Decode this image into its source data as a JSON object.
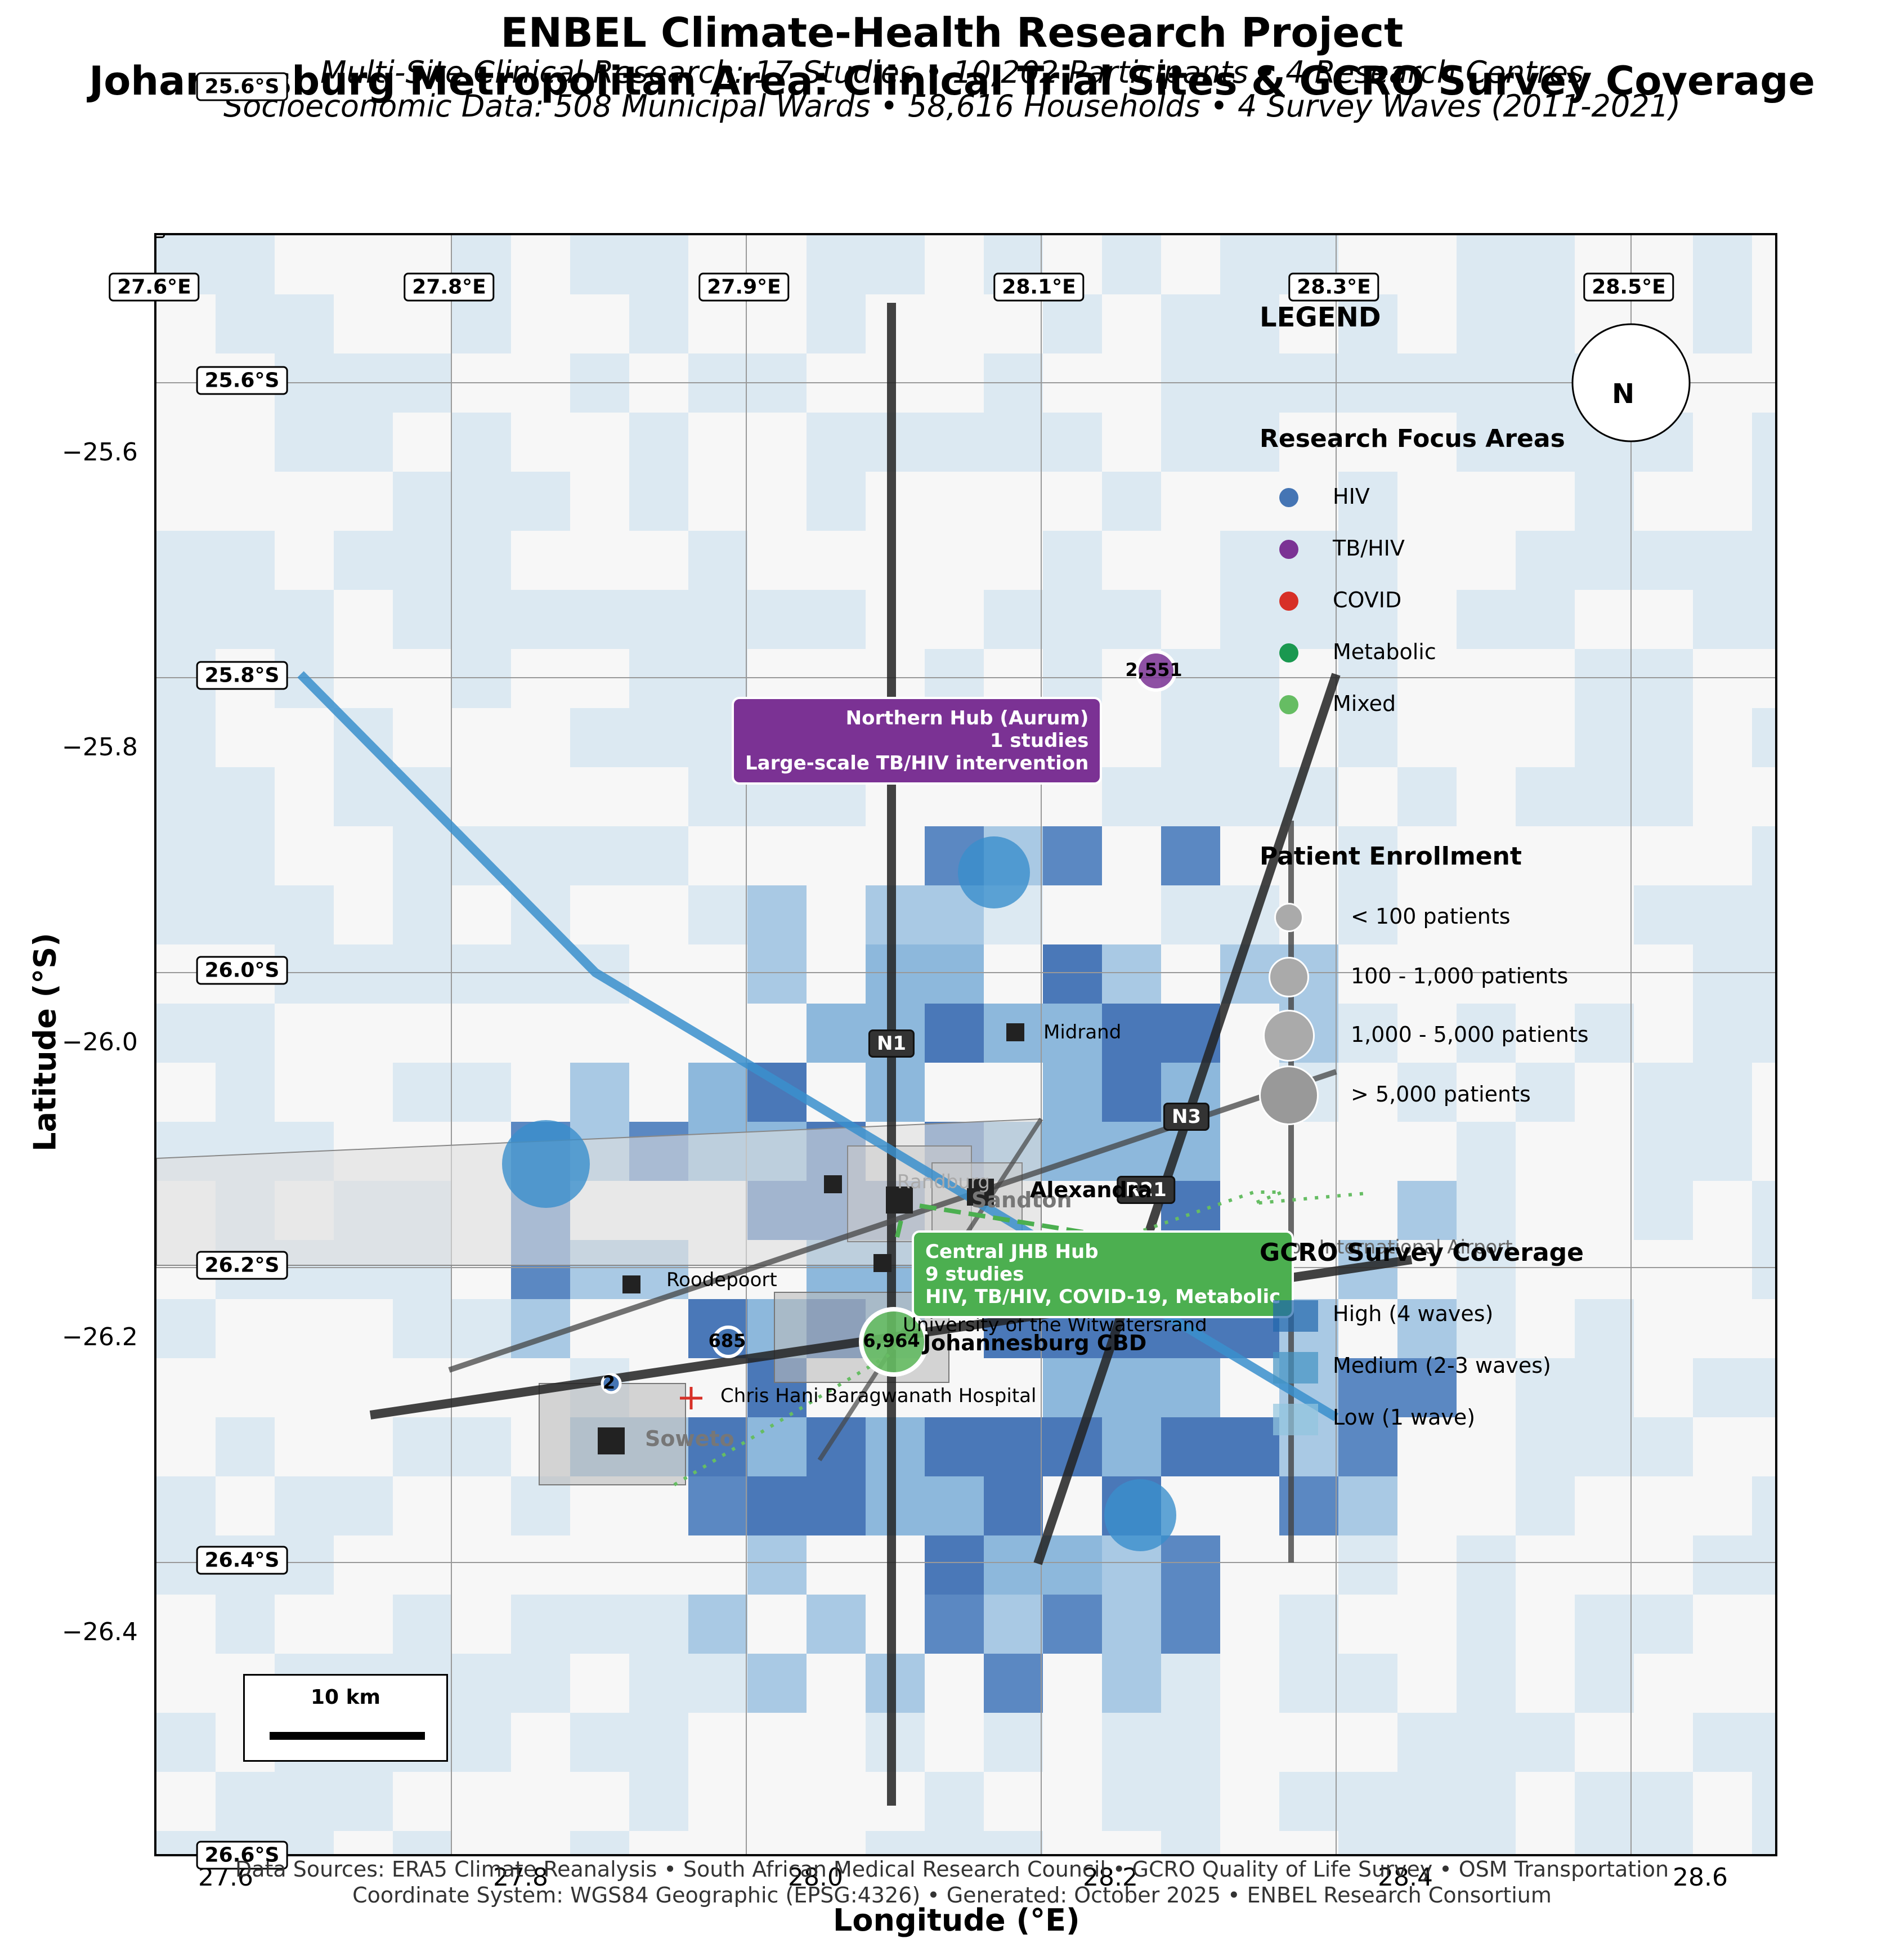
{
  "title": {
    "line1": "ENBEL Climate-Health Research Project",
    "line2": "Johannesburg Metropolitan Area: Clinical Trial Sites & GCRO Survey Coverage",
    "sub1": "Multi-Site Clinical Research: 17 Studies • 10,202 Participants • 4 Research Centres",
    "sub2": "Socioeconomic Data: 508 Municipal Wards • 58,616 Households • 4 Survey Waves (2011-2021)"
  },
  "axes": {
    "xlabel": "Longitude (°E)",
    "ylabel": "Latitude (°S)",
    "x_ticks": [
      "27.6",
      "27.8",
      "28.0",
      "28.2",
      "28.4",
      "28.6"
    ],
    "y_ticks": [
      "−25.6",
      "−25.8",
      "−26.0",
      "−26.2",
      "−26.4"
    ]
  },
  "grid_labels": {
    "lon": [
      "27.6°E",
      "27.8°E",
      "27.9°E",
      "28.1°E",
      "28.3°E",
      "28.5°E"
    ],
    "lat": [
      "25.6°S",
      "25.8°S",
      "26.0°S",
      "26.2°S",
      "26.4°S",
      "26.6°S"
    ],
    "top_left_overlap": "25.6°S"
  },
  "roads": [
    "N1",
    "N3",
    "R21"
  ],
  "places": {
    "midrand": "Midrand",
    "alexandra": "Alexandra",
    "roodepoort": "Roodepoort",
    "soweto": "Soweto",
    "jhb_cbd": "Johannesburg CBD",
    "chris_hani": "Chris Hani Baragwanath Hospital",
    "wits": "University of the Witwatersrand",
    "airport": "OR Tambo International Airport",
    "randburg": "Randburg",
    "sandton": "Sandton"
  },
  "hubs": {
    "northern": {
      "l1": "Northern Hub (Aurum)",
      "l2": "1 studies",
      "l3": "Large-scale TB/HIV intervention",
      "color": "#7b3294"
    },
    "central": {
      "l1": "Central JHB Hub",
      "l2": "9 studies",
      "l3": "HIV, TB/HIV, COVID-19, Metabolic",
      "color": "#4caf50"
    }
  },
  "enrollment_counts": {
    "aurum": "2,551",
    "central": "6,964",
    "west": "685",
    "soweto": "2"
  },
  "legend": {
    "title": "LEGEND",
    "focus_title": "Research Focus Areas",
    "focus": [
      {
        "label": "HIV",
        "color": "#4575b4"
      },
      {
        "label": "TB/HIV",
        "color": "#7b3294"
      },
      {
        "label": "COVID",
        "color": "#d73027"
      },
      {
        "label": "Metabolic",
        "color": "#1a9850"
      },
      {
        "label": "Mixed",
        "color": "#66bd63"
      }
    ],
    "enroll_title": "Patient Enrollment",
    "enroll": [
      "< 100 patients",
      "100 - 1,000 patients",
      "1,000 - 5,000 patients",
      "> 5,000 patients"
    ],
    "gcro_title": "GCRO Survey Coverage",
    "gcro": [
      {
        "label": "High (4 waves)",
        "color": "#2166ac"
      },
      {
        "label": "Medium (2-3 waves)",
        "color": "#4393c3"
      },
      {
        "label": "Low (1 wave)",
        "color": "#92c5de"
      }
    ]
  },
  "scale_bar": "10 km",
  "compass": "N",
  "footer": {
    "line1": "Data Sources: ERA5 Climate Reanalysis • South African Medical Research Council • GCRO Quality of Life Survey • OSM Transportation",
    "line2": "Coordinate System: WGS84 Geographic (EPSG:4326) • Generated: October 2025 • ENBEL Research Consortium"
  }
}
